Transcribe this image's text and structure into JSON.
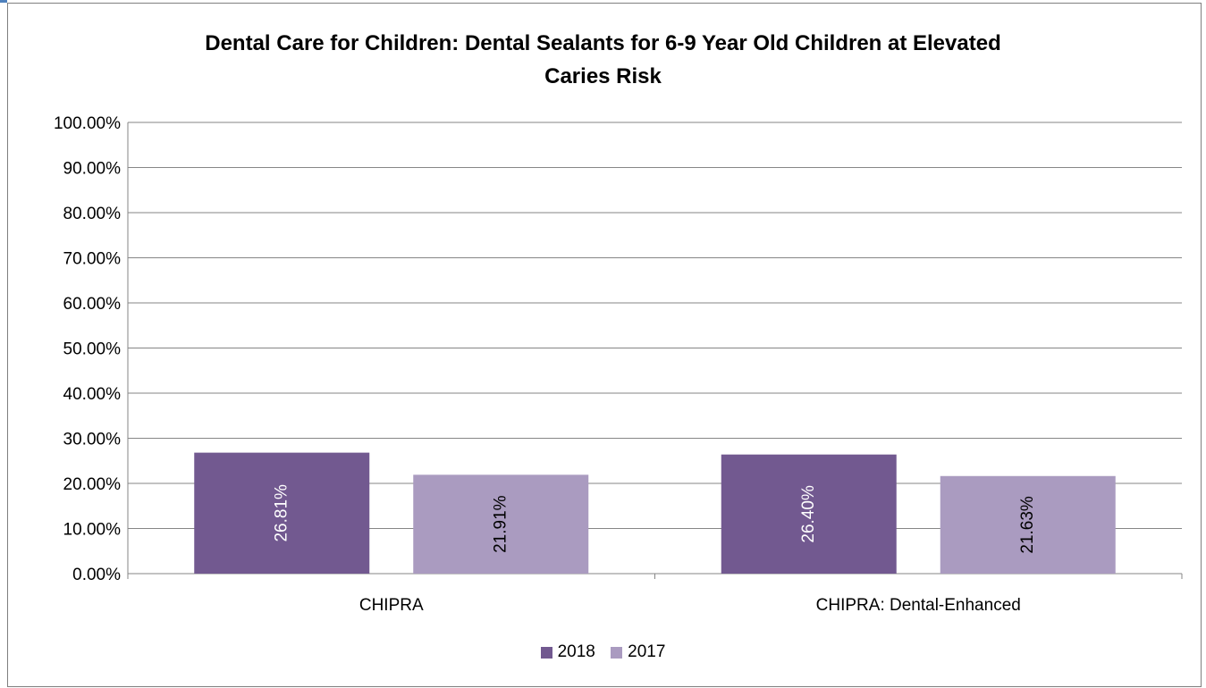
{
  "chart_data": {
    "type": "bar",
    "title_lines": [
      "Dental Care for Children: Dental Sealants for 6-9 Year Old Children at Elevated",
      "Caries Risk"
    ],
    "categories": [
      "CHIPRA",
      "CHIPRA: Dental-Enhanced"
    ],
    "series": [
      {
        "name": "2018",
        "values": [
          26.81,
          26.4
        ],
        "labels": [
          "26.81%",
          "26.40%"
        ],
        "color": "#725990",
        "label_color": "#ffffff"
      },
      {
        "name": "2017",
        "values": [
          21.91,
          21.63
        ],
        "labels": [
          "21.91%",
          "21.63%"
        ],
        "color": "#aa9bc0",
        "label_color": "#000000"
      }
    ],
    "y_ticks": [
      "0.00%",
      "10.00%",
      "20.00%",
      "30.00%",
      "40.00%",
      "50.00%",
      "60.00%",
      "70.00%",
      "80.00%",
      "90.00%",
      "100.00%"
    ],
    "ylim": [
      0,
      100
    ],
    "grid": true,
    "legend_position": "bottom",
    "gridline_color": "#868686"
  }
}
